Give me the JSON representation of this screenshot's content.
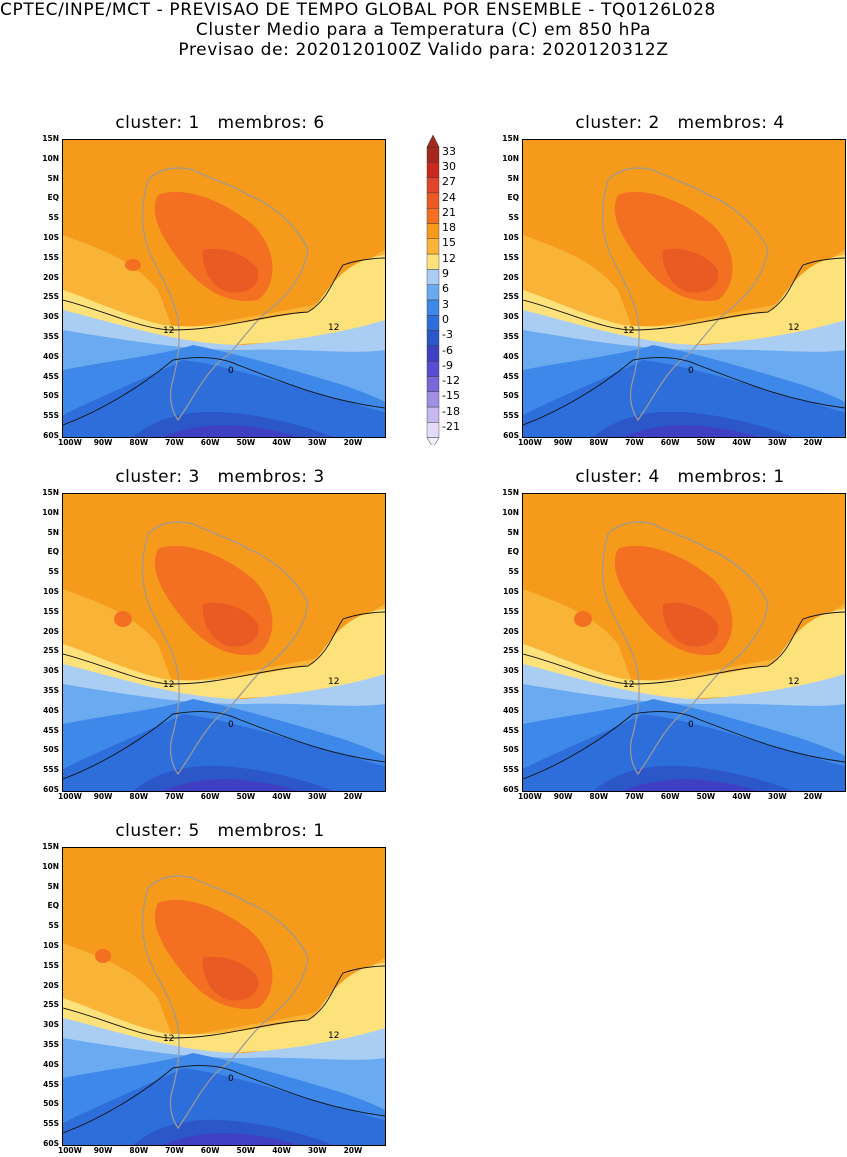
{
  "header": {
    "line1": "CPTEC/INPE/MCT - PREVISAO DE TEMPO GLOBAL POR ENSEMBLE - TQ0126L028",
    "line2": "Cluster Medio para a Temperatura (C) em 850 hPa",
    "line3": "Previsao de: 2020120100Z   Valido para: 2020120312Z"
  },
  "panels": [
    {
      "title": "cluster: 1   membros: 6"
    },
    {
      "title": "cluster: 2   membros: 4"
    },
    {
      "title": "cluster: 3   membros: 3"
    },
    {
      "title": "cluster: 4   membros: 1"
    },
    {
      "title": "cluster: 5   membros: 1"
    }
  ],
  "y_ticks": [
    "15N",
    "10N",
    "5N",
    "EQ",
    "5S",
    "10S",
    "15S",
    "20S",
    "25S",
    "30S",
    "35S",
    "40S",
    "45S",
    "50S",
    "55S",
    "60S"
  ],
  "x_ticks": [
    "100W",
    "90W",
    "80W",
    "70W",
    "60W",
    "50W",
    "40W",
    "30W",
    "20W"
  ],
  "contour_labels": {
    "warm": "12",
    "cold": "0"
  },
  "colorbar": {
    "labels": [
      "33",
      "30",
      "27",
      "24",
      "21",
      "18",
      "15",
      "12",
      "9",
      "6",
      "3",
      "0",
      "-3",
      "-6",
      "-9",
      "-12",
      "-15",
      "-18",
      "-21"
    ],
    "colors": [
      "#a5281d",
      "#c8291f",
      "#e0442a",
      "#ea5a23",
      "#f36f21",
      "#f59a1a",
      "#f9b437",
      "#fde17a",
      "#aacdf3",
      "#6aaaf0",
      "#3d88e8",
      "#2e6edb",
      "#2b57c8",
      "#3f3fc4",
      "#5a4bd0",
      "#7a67da",
      "#a08fe4",
      "#c6b9ef",
      "#e3dbf7"
    ]
  }
}
